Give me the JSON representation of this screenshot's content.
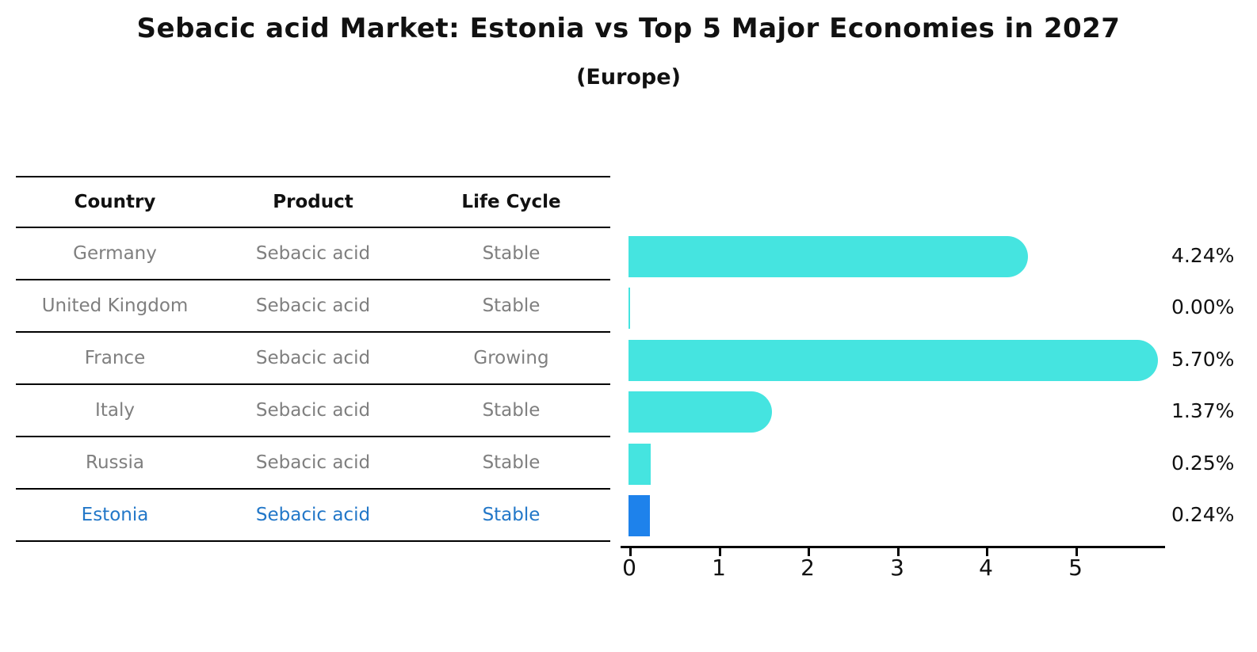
{
  "header": {
    "title": "Sebacic acid Market: Estonia vs Top 5 Major Economies in 2027",
    "subtitle": "(Europe)"
  },
  "table": {
    "headers": [
      "Country",
      "Product",
      "Life Cycle"
    ]
  },
  "colors": {
    "bar": "#45e4e0",
    "highlight_bar": "#1e82eb",
    "row_text": "#7f7f7f",
    "highlight_text": "#2277c8",
    "axis": "#000000"
  },
  "chart_data": {
    "type": "bar",
    "orientation": "horizontal",
    "categories": [
      "Germany",
      "United Kingdom",
      "France",
      "Italy",
      "Russia",
      "Estonia"
    ],
    "values": [
      4.24,
      0.0,
      5.7,
      1.37,
      0.25,
      0.24
    ],
    "value_labels": [
      "4.24%",
      "0.00%",
      "5.70%",
      "1.37%",
      "0.25%",
      "0.24%"
    ],
    "title": "Sebacic acid Market: Estonia vs Top 5 Major Economies in 2027 (Europe)",
    "xlabel": "",
    "ylabel": "",
    "xlim": [
      0,
      6
    ],
    "xticks": [
      "0",
      "1",
      "2",
      "3",
      "4",
      "5"
    ],
    "grid": false,
    "legend": false,
    "highlight_category": "Estonia"
  },
  "rows": [
    {
      "country": "Germany",
      "product": "Sebacic acid",
      "life_cycle": "Stable",
      "value": 4.24,
      "label": "4.24%",
      "highlight": false
    },
    {
      "country": "United Kingdom",
      "product": "Sebacic acid",
      "life_cycle": "Stable",
      "value": 0.0,
      "label": "0.00%",
      "highlight": false
    },
    {
      "country": "France",
      "product": "Sebacic acid",
      "life_cycle": "Growing",
      "value": 5.7,
      "label": "5.70%",
      "highlight": false
    },
    {
      "country": "Italy",
      "product": "Sebacic acid",
      "life_cycle": "Stable",
      "value": 1.37,
      "label": "1.37%",
      "highlight": false
    },
    {
      "country": "Russia",
      "product": "Sebacic acid",
      "life_cycle": "Stable",
      "value": 0.25,
      "label": "0.25%",
      "highlight": false
    },
    {
      "country": "Estonia",
      "product": "Sebacic acid",
      "life_cycle": "Stable",
      "value": 0.24,
      "label": "0.24%",
      "highlight": true
    }
  ]
}
